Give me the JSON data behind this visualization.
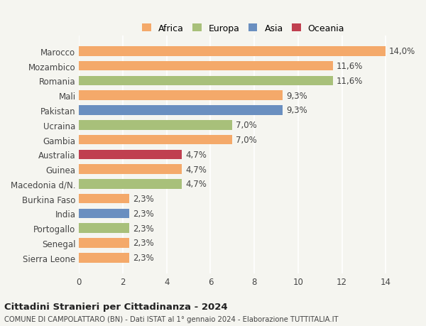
{
  "countries": [
    "Sierra Leone",
    "Senegal",
    "Portogallo",
    "India",
    "Burkina Faso",
    "Macedonia d/N.",
    "Guinea",
    "Australia",
    "Gambia",
    "Ucraina",
    "Pakistan",
    "Mali",
    "Romania",
    "Mozambico",
    "Marocco"
  ],
  "values": [
    2.3,
    2.3,
    2.3,
    2.3,
    2.3,
    4.7,
    4.7,
    4.7,
    7.0,
    7.0,
    9.3,
    9.3,
    11.6,
    11.6,
    14.0
  ],
  "labels": [
    "2,3%",
    "2,3%",
    "2,3%",
    "2,3%",
    "2,3%",
    "4,7%",
    "4,7%",
    "4,7%",
    "7,0%",
    "7,0%",
    "9,3%",
    "9,3%",
    "11,6%",
    "11,6%",
    "14,0%"
  ],
  "colors": [
    "#F4A96A",
    "#F4A96A",
    "#A8C07A",
    "#6A8FC0",
    "#F4A96A",
    "#A8C07A",
    "#F4A96A",
    "#C04050",
    "#F4A96A",
    "#A8C07A",
    "#6A8FC0",
    "#F4A96A",
    "#A8C07A",
    "#F4A96A",
    "#F4A96A"
  ],
  "continent_colors": {
    "Africa": "#F4A96A",
    "Europa": "#A8C07A",
    "Asia": "#6A8FC0",
    "Oceania": "#C04050"
  },
  "xlim": [
    0,
    15
  ],
  "xticks": [
    0,
    2,
    4,
    6,
    8,
    10,
    12,
    14
  ],
  "title_main": "Cittadini Stranieri per Cittadinanza - 2024",
  "title_sub": "COMUNE DI CAMPOLATTARO (BN) - Dati ISTAT al 1° gennaio 2024 - Elaborazione TUTTITALIA.IT",
  "bg_color": "#f5f5f0",
  "bar_height": 0.65,
  "grid_color": "#ffffff",
  "label_fontsize": 8.5,
  "tick_fontsize": 8.5
}
